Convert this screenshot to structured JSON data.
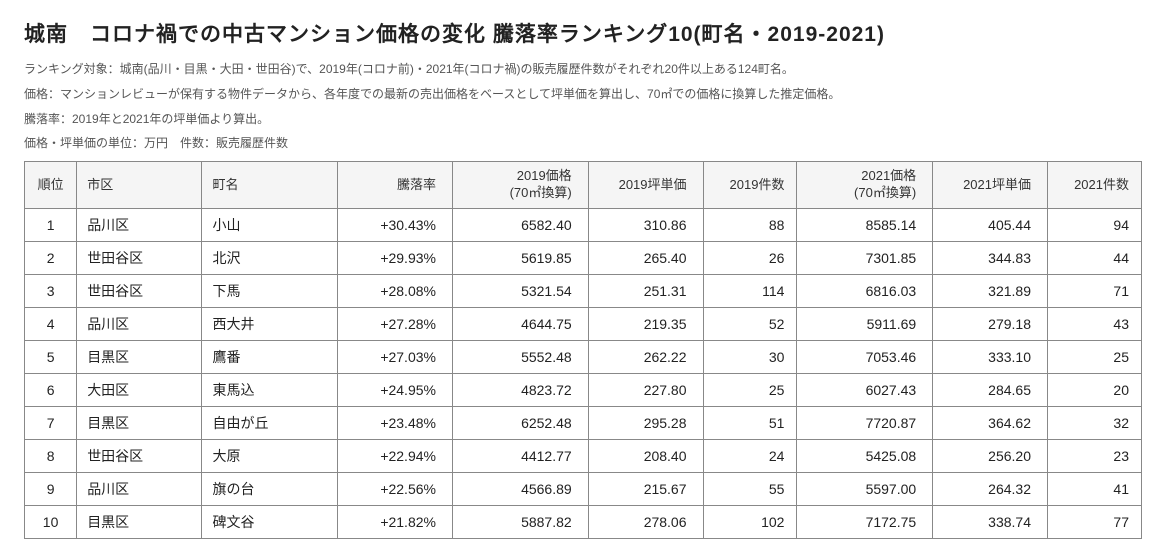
{
  "title": "城南　コロナ禍での中古マンション価格の変化 騰落率ランキング10(町名・2019-2021)",
  "desc1": "ランキング対象：城南(品川・目黒・大田・世田谷)で、2019年(コロナ前)・2021年(コロナ禍)の販売履歴件数がそれぞれ20件以上ある124町名。",
  "desc2": "価格：マンションレビューが保有する物件データから、各年度での最新の売出価格をベースとして坪単価を算出し、70㎡での価格に換算した推定価格。",
  "desc3": "騰落率：2019年と2021年の坪単価より算出。",
  "sub_info": "価格・坪単価の単位：万円　件数：販売履歴件数",
  "columns": [
    "順位",
    "市区",
    "町名",
    "騰落率",
    "2019価格\n(70㎡換算)",
    "2019坪単価",
    "2019件数",
    "2021価格\n(70㎡換算)",
    "2021坪単価",
    "2021件数"
  ],
  "column_classes": [
    "col-rank",
    "col-ward",
    "col-town",
    "col-rate",
    "col-price",
    "col-unit",
    "col-count",
    "col-price",
    "col-unit",
    "col-count"
  ],
  "rows": [
    [
      "1",
      "品川区",
      "小山",
      "+30.43%",
      "6582.40",
      "310.86",
      "88",
      "8585.14",
      "405.44",
      "94"
    ],
    [
      "2",
      "世田谷区",
      "北沢",
      "+29.93%",
      "5619.85",
      "265.40",
      "26",
      "7301.85",
      "344.83",
      "44"
    ],
    [
      "3",
      "世田谷区",
      "下馬",
      "+28.08%",
      "5321.54",
      "251.31",
      "114",
      "6816.03",
      "321.89",
      "71"
    ],
    [
      "4",
      "品川区",
      "西大井",
      "+27.28%",
      "4644.75",
      "219.35",
      "52",
      "5911.69",
      "279.18",
      "43"
    ],
    [
      "5",
      "目黒区",
      "鷹番",
      "+27.03%",
      "5552.48",
      "262.22",
      "30",
      "7053.46",
      "333.10",
      "25"
    ],
    [
      "6",
      "大田区",
      "東馬込",
      "+24.95%",
      "4823.72",
      "227.80",
      "25",
      "6027.43",
      "284.65",
      "20"
    ],
    [
      "7",
      "目黒区",
      "自由が丘",
      "+23.48%",
      "6252.48",
      "295.28",
      "51",
      "7720.87",
      "364.62",
      "32"
    ],
    [
      "8",
      "世田谷区",
      "大原",
      "+22.94%",
      "4412.77",
      "208.40",
      "24",
      "5425.08",
      "256.20",
      "23"
    ],
    [
      "9",
      "品川区",
      "旗の台",
      "+22.56%",
      "4566.89",
      "215.67",
      "55",
      "5597.00",
      "264.32",
      "41"
    ],
    [
      "10",
      "目黒区",
      "碑文谷",
      "+21.82%",
      "5887.82",
      "278.06",
      "102",
      "7172.75",
      "338.74",
      "77"
    ]
  ]
}
